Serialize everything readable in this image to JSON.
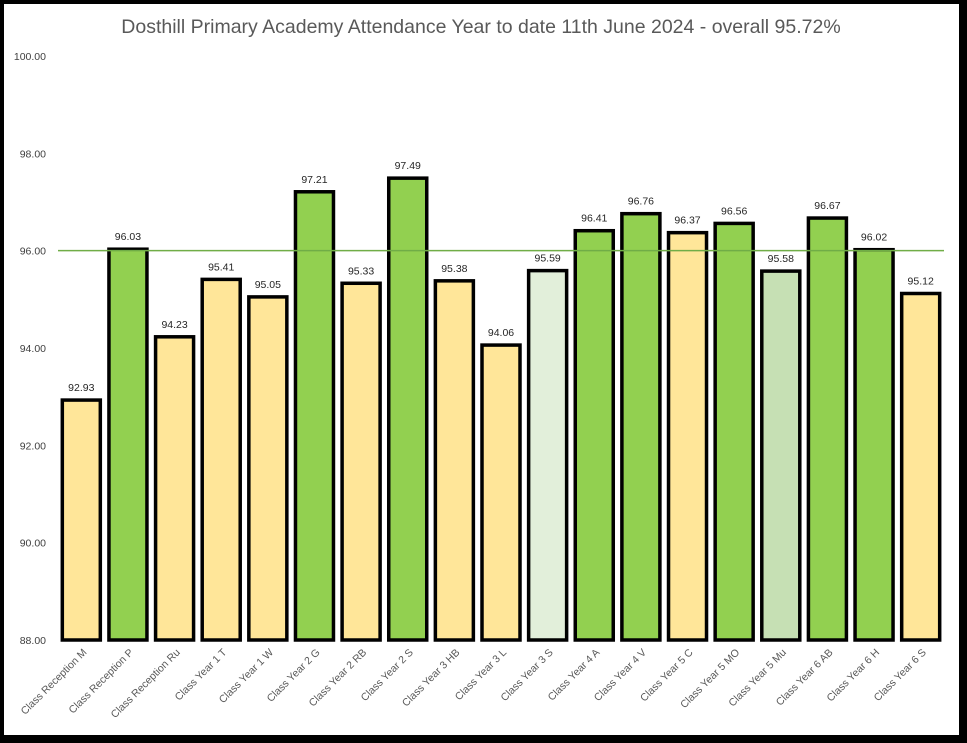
{
  "chart_data": {
    "type": "bar",
    "title": "Dosthill Primary Academy Attendance Year to date 11th June  2024 - overall 95.72%",
    "xlabel": "",
    "ylabel": "",
    "ylim": [
      88,
      100
    ],
    "yticks": [
      "88.00",
      "90.00",
      "92.00",
      "94.00",
      "96.00",
      "98.00",
      "100.00"
    ],
    "grid": false,
    "reference_line": 96,
    "reference_line_color": "#70AD47",
    "categories": [
      "Class Reception M",
      "Class Reception P",
      "Class Reception Ru",
      "Class Year 1 T",
      "Class Year 1 W",
      "Class Year 2 G",
      "Class Year 2 RB",
      "Class Year 2 S",
      "Class Year 3 HB",
      "Class Year 3 L",
      "Class Year 3 S",
      "Class Year 4 A",
      "Class Year 4 V",
      "Class Year 5 C",
      "Class Year 5 MO",
      "Class Year 5 Mu",
      "Class Year 6 AB",
      "Class Year 6 H",
      "Class Year 6 S"
    ],
    "values": [
      92.93,
      96.03,
      94.23,
      95.41,
      95.05,
      97.21,
      95.33,
      97.49,
      95.38,
      94.06,
      95.59,
      96.41,
      96.76,
      96.37,
      96.56,
      95.58,
      96.67,
      96.02,
      95.12
    ],
    "value_labels": [
      "92.93",
      "96.03",
      "94.23",
      "95.41",
      "95.05",
      "97.21",
      "95.33",
      "97.49",
      "95.38",
      "94.06",
      "95.59",
      "96.41",
      "96.76",
      "96.37",
      "96.56",
      "95.58",
      "96.67",
      "96.02",
      "95.12"
    ],
    "bar_colors": [
      "#FFE699",
      "#92D050",
      "#FFE699",
      "#FFE699",
      "#FFE699",
      "#92D050",
      "#FFE699",
      "#92D050",
      "#FFE699",
      "#FFE699",
      "#E2EFDA",
      "#92D050",
      "#92D050",
      "#FFE699",
      "#92D050",
      "#C6E0B4",
      "#92D050",
      "#92D050",
      "#FFE699"
    ],
    "bar_outline_color": "#000000"
  }
}
